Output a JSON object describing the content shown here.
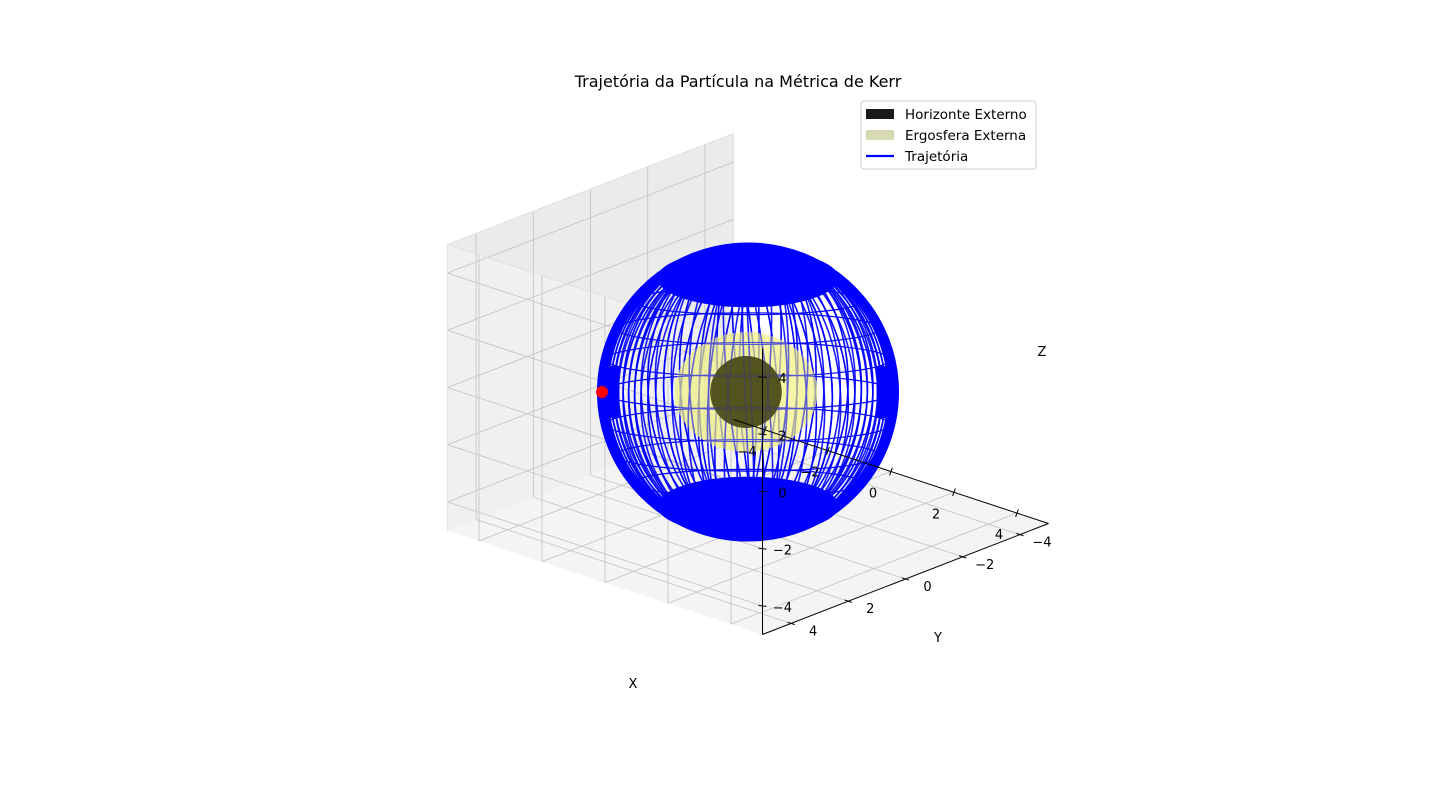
{
  "chart_data": {
    "type": "3d-surface-line",
    "title": "Trajetória da Partícula na Métrica de Kerr",
    "xlabel": "X",
    "ylabel": "Y",
    "zlabel": "Z",
    "xlim": [
      -5,
      5
    ],
    "ylim": [
      -5,
      5
    ],
    "zlim": [
      -5,
      5
    ],
    "x_ticks": [
      {
        "value": -4,
        "label": "−4"
      },
      {
        "value": -2,
        "label": "−2"
      },
      {
        "value": 0,
        "label": "0"
      },
      {
        "value": 2,
        "label": "2"
      },
      {
        "value": 4,
        "label": "4"
      }
    ],
    "y_ticks": [
      {
        "value": -4,
        "label": "−4"
      },
      {
        "value": -2,
        "label": "−2"
      },
      {
        "value": 0,
        "label": "0"
      },
      {
        "value": 2,
        "label": "2"
      },
      {
        "value": 4,
        "label": "4"
      }
    ],
    "z_ticks": [
      {
        "value": -4,
        "label": "−4"
      },
      {
        "value": -2,
        "label": "−2"
      },
      {
        "value": 0,
        "label": "0"
      },
      {
        "value": 2,
        "label": "2"
      },
      {
        "value": 4,
        "label": "4"
      }
    ],
    "grid": true,
    "legend_position": "top-right",
    "series": [
      {
        "name": "Horizonte Externo",
        "kind": "sphere",
        "radius": 1.2,
        "color": "#1a1a1a",
        "face_color": "#3f3f10",
        "opacity": 0.9
      },
      {
        "name": "Ergosfera Externa",
        "kind": "ellipsoid",
        "radius_equatorial": 2.4,
        "radius_polar": 1.9,
        "color": "#d6d9b1",
        "face_color": "#f0f080",
        "opacity": 0.55
      },
      {
        "name": "Trajetória",
        "kind": "line",
        "radius": 4.9,
        "color": "#0000ff",
        "opacity": 1.0
      }
    ],
    "marker": {
      "x": -4.9,
      "y": 0,
      "z": 0,
      "color": "#ff0000"
    }
  }
}
